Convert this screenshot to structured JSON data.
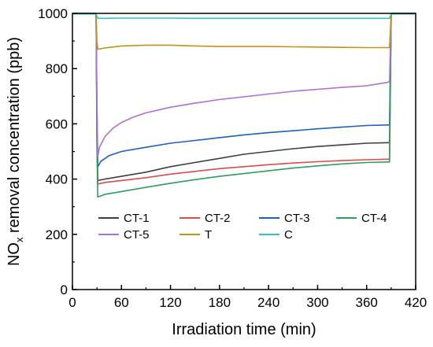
{
  "chart_data": {
    "type": "line",
    "xlabel": "Irradiation time (min)",
    "ylabel": {
      "main": "NO",
      "sub": "x",
      "rest": " removal concentration (ppb)"
    },
    "xlim": [
      0,
      420
    ],
    "ylim": [
      0,
      1000
    ],
    "xticks": [
      0,
      60,
      120,
      180,
      240,
      300,
      360,
      420
    ],
    "yticks": [
      0,
      200,
      400,
      600,
      800,
      1000
    ],
    "grid": false,
    "legend_placement": "lower-center",
    "series": [
      {
        "name": "CT-1",
        "color": "#3f3f3f",
        "x": [
          0,
          29,
          30,
          31,
          40,
          60,
          90,
          120,
          150,
          180,
          210,
          240,
          270,
          300,
          330,
          360,
          387,
          388,
          390,
          420
        ],
        "y": [
          1000,
          1000,
          600,
          395,
          400,
          410,
          425,
          445,
          460,
          475,
          490,
          500,
          510,
          518,
          524,
          530,
          532,
          532,
          1000,
          1000
        ]
      },
      {
        "name": "CT-2",
        "color": "#e04a4a",
        "x": [
          0,
          29,
          30,
          31,
          40,
          60,
          90,
          120,
          150,
          180,
          210,
          240,
          270,
          300,
          330,
          360,
          387,
          388,
          390,
          420
        ],
        "y": [
          1000,
          1000,
          560,
          382,
          388,
          395,
          405,
          418,
          428,
          438,
          445,
          452,
          458,
          463,
          467,
          470,
          472,
          472,
          1000,
          1000
        ]
      },
      {
        "name": "CT-3",
        "color": "#1f5fbf",
        "x": [
          0,
          29,
          30,
          31,
          35,
          45,
          60,
          90,
          120,
          150,
          180,
          210,
          240,
          270,
          300,
          330,
          360,
          387,
          388,
          390,
          420
        ],
        "y": [
          1000,
          1000,
          640,
          445,
          465,
          485,
          500,
          515,
          530,
          540,
          550,
          560,
          568,
          575,
          582,
          588,
          594,
          596,
          596,
          1000,
          1000
        ]
      },
      {
        "name": "CT-4",
        "color": "#2f9d5d",
        "x": [
          0,
          29,
          30,
          31,
          40,
          60,
          90,
          120,
          150,
          180,
          210,
          240,
          270,
          300,
          330,
          360,
          387,
          388,
          390,
          420
        ],
        "y": [
          1000,
          1000,
          520,
          335,
          345,
          355,
          370,
          385,
          398,
          410,
          420,
          430,
          440,
          448,
          455,
          460,
          462,
          462,
          1000,
          1000
        ]
      },
      {
        "name": "CT-5",
        "color": "#b06fd4",
        "x": [
          0,
          29,
          30,
          31,
          33,
          40,
          50,
          60,
          75,
          90,
          120,
          150,
          180,
          210,
          240,
          270,
          300,
          330,
          360,
          385,
          387,
          388,
          390,
          420
        ],
        "y": [
          1000,
          1000,
          700,
          480,
          515,
          555,
          585,
          605,
          625,
          640,
          660,
          675,
          688,
          698,
          708,
          718,
          725,
          732,
          738,
          750,
          752,
          752,
          1000,
          1000
        ]
      },
      {
        "name": "T",
        "color": "#c09416",
        "x": [
          0,
          29,
          30,
          31,
          40,
          60,
          90,
          120,
          150,
          180,
          210,
          240,
          270,
          300,
          330,
          360,
          387,
          388,
          390,
          420
        ],
        "y": [
          1000,
          1000,
          900,
          870,
          875,
          882,
          885,
          885,
          882,
          880,
          880,
          880,
          879,
          878,
          877,
          876,
          876,
          876,
          1000,
          1000
        ]
      },
      {
        "name": "C",
        "color": "#2fc4c4",
        "x": [
          0,
          29,
          30,
          31,
          40,
          60,
          90,
          120,
          150,
          180,
          210,
          240,
          270,
          300,
          330,
          360,
          387,
          388,
          390,
          420
        ],
        "y": [
          998,
          998,
          990,
          982,
          982,
          983,
          983,
          983,
          982,
          982,
          982,
          982,
          982,
          982,
          982,
          982,
          982,
          982,
          998,
          998
        ]
      }
    ]
  }
}
